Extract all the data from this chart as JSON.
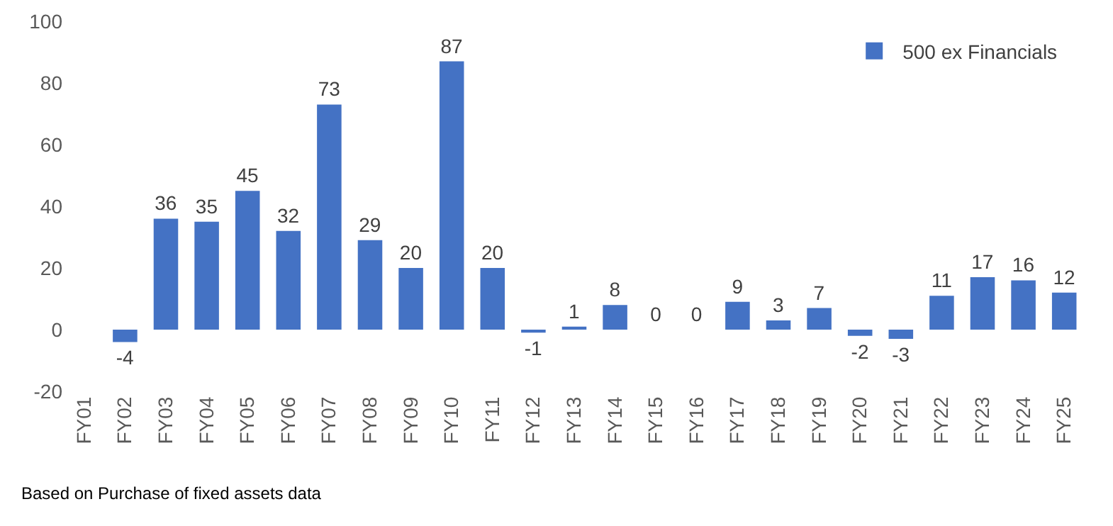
{
  "chart_data": {
    "type": "bar",
    "categories": [
      "FY01",
      "FY02",
      "FY03",
      "FY04",
      "FY05",
      "FY06",
      "FY07",
      "FY08",
      "FY09",
      "FY10",
      "FY11",
      "FY12",
      "FY13",
      "FY14",
      "FY15",
      "FY16",
      "FY17",
      "FY18",
      "FY19",
      "FY20",
      "FY21",
      "FY22",
      "FY23",
      "FY24",
      "FY25"
    ],
    "series": [
      {
        "name": "500 ex Financials",
        "color": "#4472c4",
        "values": [
          null,
          -4,
          36,
          35,
          45,
          32,
          73,
          29,
          20,
          87,
          20,
          -1,
          1,
          8,
          0,
          0,
          9,
          3,
          7,
          -2,
          -3,
          11,
          17,
          16,
          12
        ]
      }
    ],
    "ylim": [
      -20,
      100
    ],
    "yticks": [
      -20,
      0,
      20,
      40,
      60,
      80,
      100
    ],
    "data_labels": true,
    "grid": false,
    "legend": "top right",
    "annotations": [
      "Based on Purchase of fixed assets data"
    ]
  }
}
